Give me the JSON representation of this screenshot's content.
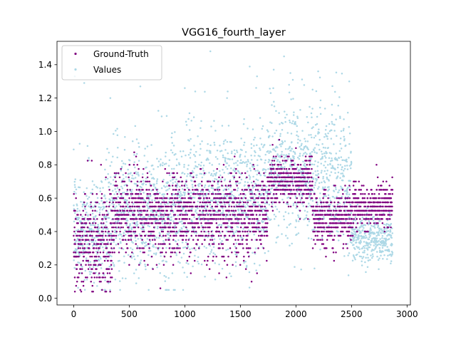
{
  "chart_data": {
    "type": "scatter",
    "title": "VGG16_fourth_layer",
    "xlabel": "",
    "ylabel": "",
    "xlim": [
      -150,
      3030
    ],
    "ylim": [
      -0.04,
      1.54
    ],
    "x_ticks": [
      0,
      500,
      1000,
      1500,
      2000,
      2500,
      3000
    ],
    "y_ticks": [
      0.0,
      0.2,
      0.4,
      0.6,
      0.8,
      1.0,
      1.2,
      1.4
    ],
    "x_tick_labels": [
      "0",
      "500",
      "1000",
      "1500",
      "2000",
      "2500",
      "3000"
    ],
    "y_tick_labels": [
      "0.0",
      "0.2",
      "0.4",
      "0.6",
      "0.8",
      "1.0",
      "1.2",
      "1.4"
    ],
    "grid": false,
    "legend_position": "top-left",
    "n_points_per_series": 2870,
    "series": [
      {
        "name": "Values",
        "color": "#add8e6",
        "segments": [
          {
            "x_range": [
              0,
              350
            ],
            "center": 0.42,
            "spread": 0.17
          },
          {
            "x_range": [
              350,
              1000
            ],
            "center": 0.52,
            "spread": 0.19
          },
          {
            "x_range": [
              1000,
              1750
            ],
            "center": 0.62,
            "spread": 0.2
          },
          {
            "x_range": [
              1750,
              2150
            ],
            "center": 0.78,
            "spread": 0.2
          },
          {
            "x_range": [
              2150,
              2500
            ],
            "center": 0.72,
            "spread": 0.22
          },
          {
            "x_range": [
              2500,
              2870
            ],
            "center": 0.36,
            "spread": 0.07
          }
        ],
        "notable_points": [
          {
            "x": 10,
            "y": 1.33
          },
          {
            "x": 95,
            "y": 1.29
          },
          {
            "x": 330,
            "y": 1.2
          },
          {
            "x": 600,
            "y": 1.27
          },
          {
            "x": 1230,
            "y": 1.48
          },
          {
            "x": 1380,
            "y": 1.2
          },
          {
            "x": 1800,
            "y": 1.37
          },
          {
            "x": 2200,
            "y": 1.36
          },
          {
            "x": 2480,
            "y": 1.3
          },
          {
            "x": 1650,
            "y": 1.33
          },
          {
            "x": 1950,
            "y": 1.35
          },
          {
            "x": 1000,
            "y": 1.26
          }
        ]
      },
      {
        "name": "Ground-Truth",
        "color": "#800080",
        "segments": [
          {
            "x_range": [
              0,
              350
            ],
            "center": 0.33,
            "spread": 0.15
          },
          {
            "x_range": [
              350,
              1750
            ],
            "center": 0.5,
            "spread": 0.12
          },
          {
            "x_range": [
              1750,
              2150
            ],
            "center": 0.7,
            "spread": 0.07
          },
          {
            "x_range": [
              2150,
              2500
            ],
            "center": 0.48,
            "spread": 0.08
          },
          {
            "x_range": [
              2500,
              2870
            ],
            "center": 0.55,
            "spread": 0.07
          }
        ],
        "notable_points": [
          {
            "x": 780,
            "y": 0.06
          },
          {
            "x": 60,
            "y": 0.05
          },
          {
            "x": 1850,
            "y": 0.95
          },
          {
            "x": 1790,
            "y": 0.92
          },
          {
            "x": 2000,
            "y": 0.9
          },
          {
            "x": 1650,
            "y": 0.15
          }
        ]
      }
    ]
  }
}
